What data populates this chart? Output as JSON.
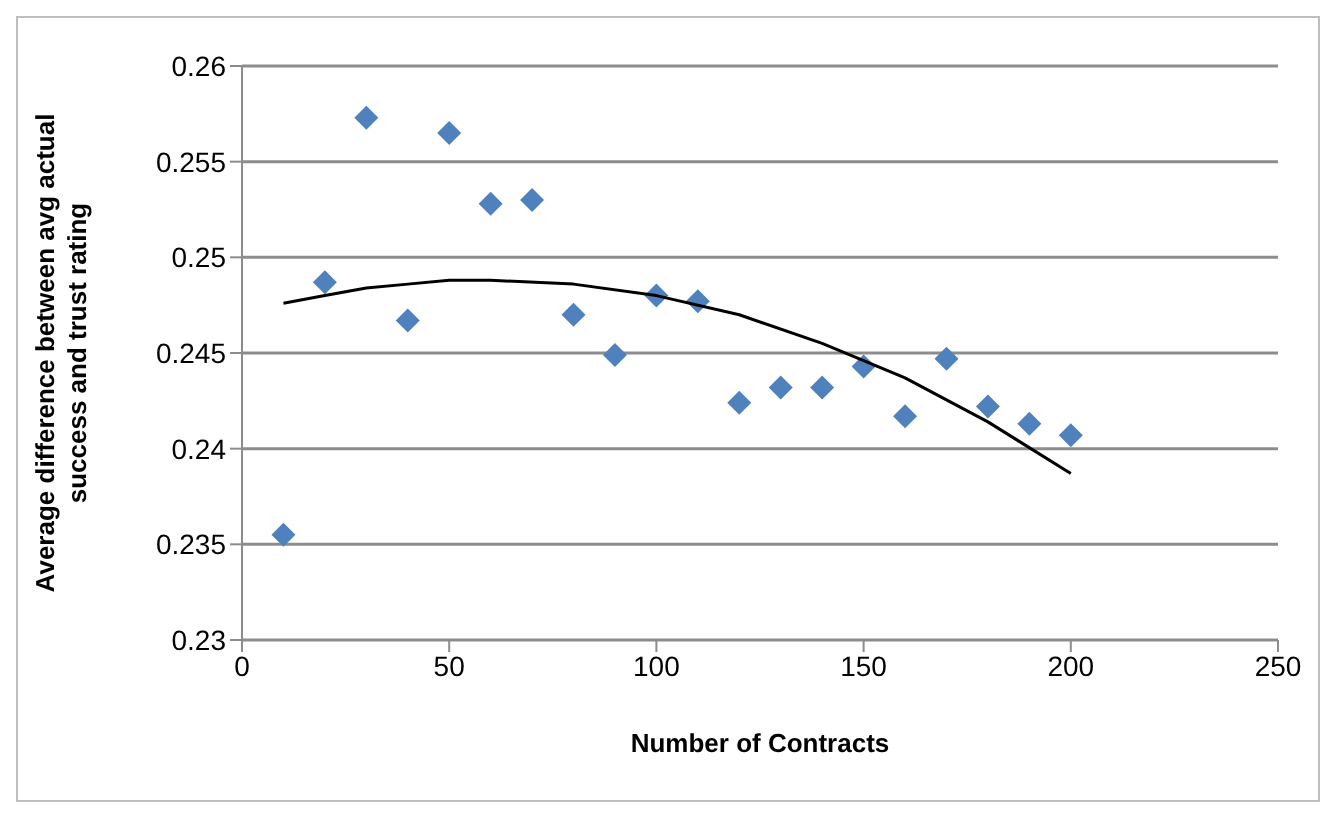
{
  "chart_data": {
    "type": "scatter",
    "xlabel": "Number of Contracts",
    "ylabel": "Average difference between avg actual success and trust rating",
    "xlim": [
      0,
      250
    ],
    "xticks": [
      0,
      50,
      100,
      150,
      200,
      250
    ],
    "ylim": [
      0.23,
      0.26
    ],
    "yticks": [
      0.23,
      0.235,
      0.24,
      0.245,
      0.25,
      0.255,
      0.26
    ],
    "grid": "y",
    "series": [
      {
        "marker": "diamond",
        "color": "#4f81bd",
        "x": [
          10,
          20,
          30,
          40,
          50,
          60,
          70,
          80,
          90,
          100,
          110,
          120,
          130,
          140,
          150,
          160,
          170,
          180,
          190,
          200
        ],
        "values": [
          0.2355,
          0.2487,
          0.2573,
          0.2467,
          0.2565,
          0.2528,
          0.253,
          0.247,
          0.2449,
          0.248,
          0.2477,
          0.2424,
          0.2432,
          0.2432,
          0.2443,
          0.2417,
          0.2447,
          0.2422,
          0.2413,
          0.2407
        ]
      },
      {
        "type": "line",
        "marker": "none",
        "color": "#000000",
        "x": [
          10,
          20,
          30,
          40,
          50,
          60,
          80,
          100,
          120,
          140,
          160,
          180,
          200
        ],
        "values": [
          0.2476,
          0.248,
          0.2484,
          0.2486,
          0.2488,
          0.2488,
          0.2486,
          0.248,
          0.247,
          0.2455,
          0.2437,
          0.2414,
          0.2387
        ]
      }
    ]
  }
}
